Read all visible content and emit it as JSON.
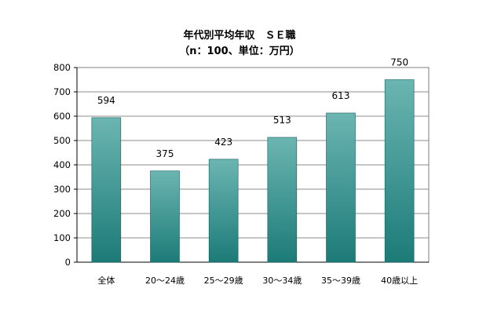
{
  "chart_data": {
    "type": "bar",
    "title": "年代別平均年収　ＳＥ職",
    "subtitle": "（n：100、単位：万円）",
    "categories": [
      "全体",
      "20～24歳",
      "25～29歳",
      "30～34歳",
      "35～39歳",
      "40歳以上"
    ],
    "values": [
      594,
      375,
      423,
      513,
      613,
      750
    ],
    "value_labels": [
      "594",
      "375",
      "423",
      "513",
      "613",
      "750"
    ],
    "yticks": [
      "0",
      "100",
      "200",
      "300",
      "400",
      "500",
      "600",
      "700",
      "800"
    ],
    "ylim": [
      0,
      800
    ],
    "grid": true,
    "legend": "none",
    "colors": {
      "bar_light": "#6bb5b2",
      "bar_dark": "#1c7b77",
      "grid": "#8c8c8c",
      "frame": "#7f7f7f"
    }
  }
}
